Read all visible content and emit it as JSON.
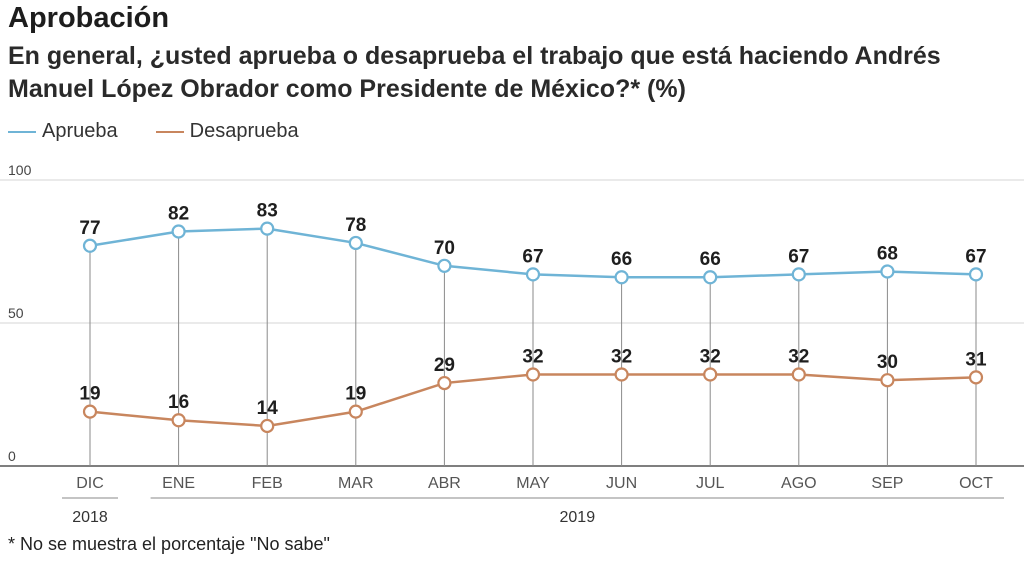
{
  "header": {
    "title": "Aprobación",
    "subtitle": "En general, ¿usted aprueba o desaprueba el trabajo que está haciendo Andrés Manuel López Obrador como Presidente de México?*  (%)"
  },
  "legend": {
    "items": [
      {
        "label": "Aprueba",
        "color": "#6fb4d6"
      },
      {
        "label": "Desaprueba",
        "color": "#c8865e"
      }
    ]
  },
  "footnote": "* No se muestra el porcentaje \"No sabe\"",
  "chart_data": {
    "type": "line",
    "categories": [
      "DIC",
      "ENE",
      "FEB",
      "MAR",
      "ABR",
      "MAY",
      "JUN",
      "JUL",
      "AGO",
      "SEP",
      "OCT"
    ],
    "year_groups": [
      {
        "label": "2018",
        "from": 0,
        "to": 0
      },
      {
        "label": "2019",
        "from": 1,
        "to": 10
      }
    ],
    "series": [
      {
        "name": "Aprueba",
        "color": "#6fb4d6",
        "values": [
          77,
          82,
          83,
          78,
          70,
          67,
          66,
          66,
          67,
          68,
          67
        ]
      },
      {
        "name": "Desaprueba",
        "color": "#c8865e",
        "values": [
          19,
          16,
          14,
          19,
          29,
          32,
          32,
          32,
          32,
          30,
          31
        ]
      }
    ],
    "yticks": [
      0,
      50,
      100
    ],
    "ylim": [
      0,
      100
    ],
    "grid": true
  }
}
